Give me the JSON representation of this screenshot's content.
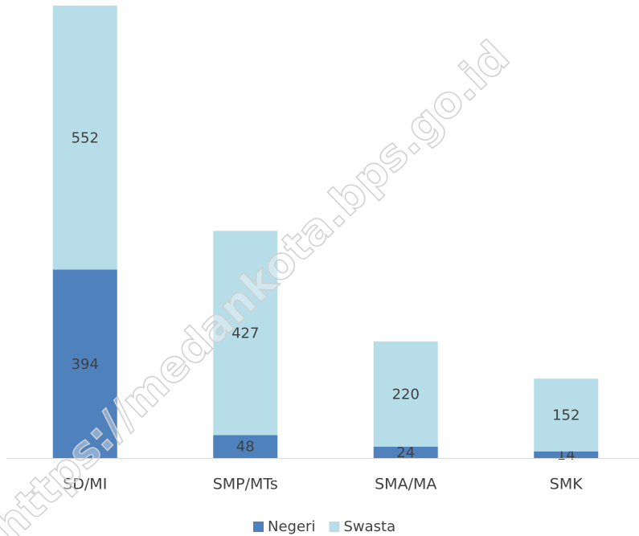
{
  "chart_data": {
    "type": "stacked-bar",
    "categories": [
      "SD/MI",
      "SMP/MTs",
      "SMA/MA",
      "SMK"
    ],
    "series": [
      {
        "name": "Negeri",
        "color": "#4f81bd",
        "values": [
          394,
          48,
          24,
          14
        ]
      },
      {
        "name": "Swasta",
        "color": "#b7dee8",
        "values": [
          552,
          427,
          220,
          152
        ]
      }
    ],
    "ylim": [
      0,
      946
    ],
    "legend": "bottom",
    "watermark": "https://medankota.bps.go.id"
  }
}
